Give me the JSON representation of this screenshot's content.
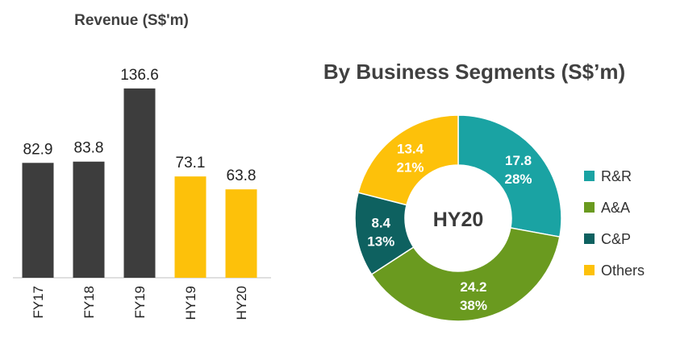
{
  "chart_data": [
    {
      "type": "bar",
      "title": "Revenue (S$'m)",
      "categories": [
        "FY17",
        "FY18",
        "FY19",
        "HY19",
        "HY20"
      ],
      "values": [
        82.9,
        83.8,
        136.6,
        73.1,
        63.8
      ],
      "value_labels": [
        "82.9",
        "83.8",
        "136.6",
        "73.1",
        "63.8"
      ],
      "bar_colors": [
        "#3d3d3d",
        "#3d3d3d",
        "#3d3d3d",
        "#fdc10a",
        "#fdc10a"
      ],
      "xlabel": "",
      "ylabel": "",
      "ylim": [
        0,
        140
      ],
      "grid": false
    },
    {
      "type": "pie",
      "variant": "donut",
      "title": "By Business Segments (S$’m)",
      "center_label": "HY20",
      "slices": [
        {
          "name": "R&R",
          "value": 17.8,
          "value_label": "17.8",
          "percent_label": "28%",
          "color": "#1aa3a3"
        },
        {
          "name": "A&A",
          "value": 24.2,
          "value_label": "24.2",
          "percent_label": "38%",
          "color": "#6a9a1f"
        },
        {
          "name": "C&P",
          "value": 8.4,
          "value_label": "8.4",
          "percent_label": "13%",
          "color": "#0e6160"
        },
        {
          "name": "Others",
          "value": 13.4,
          "value_label": "13.4",
          "percent_label": "21%",
          "color": "#fdc10a"
        }
      ],
      "legend_position": "right"
    }
  ]
}
